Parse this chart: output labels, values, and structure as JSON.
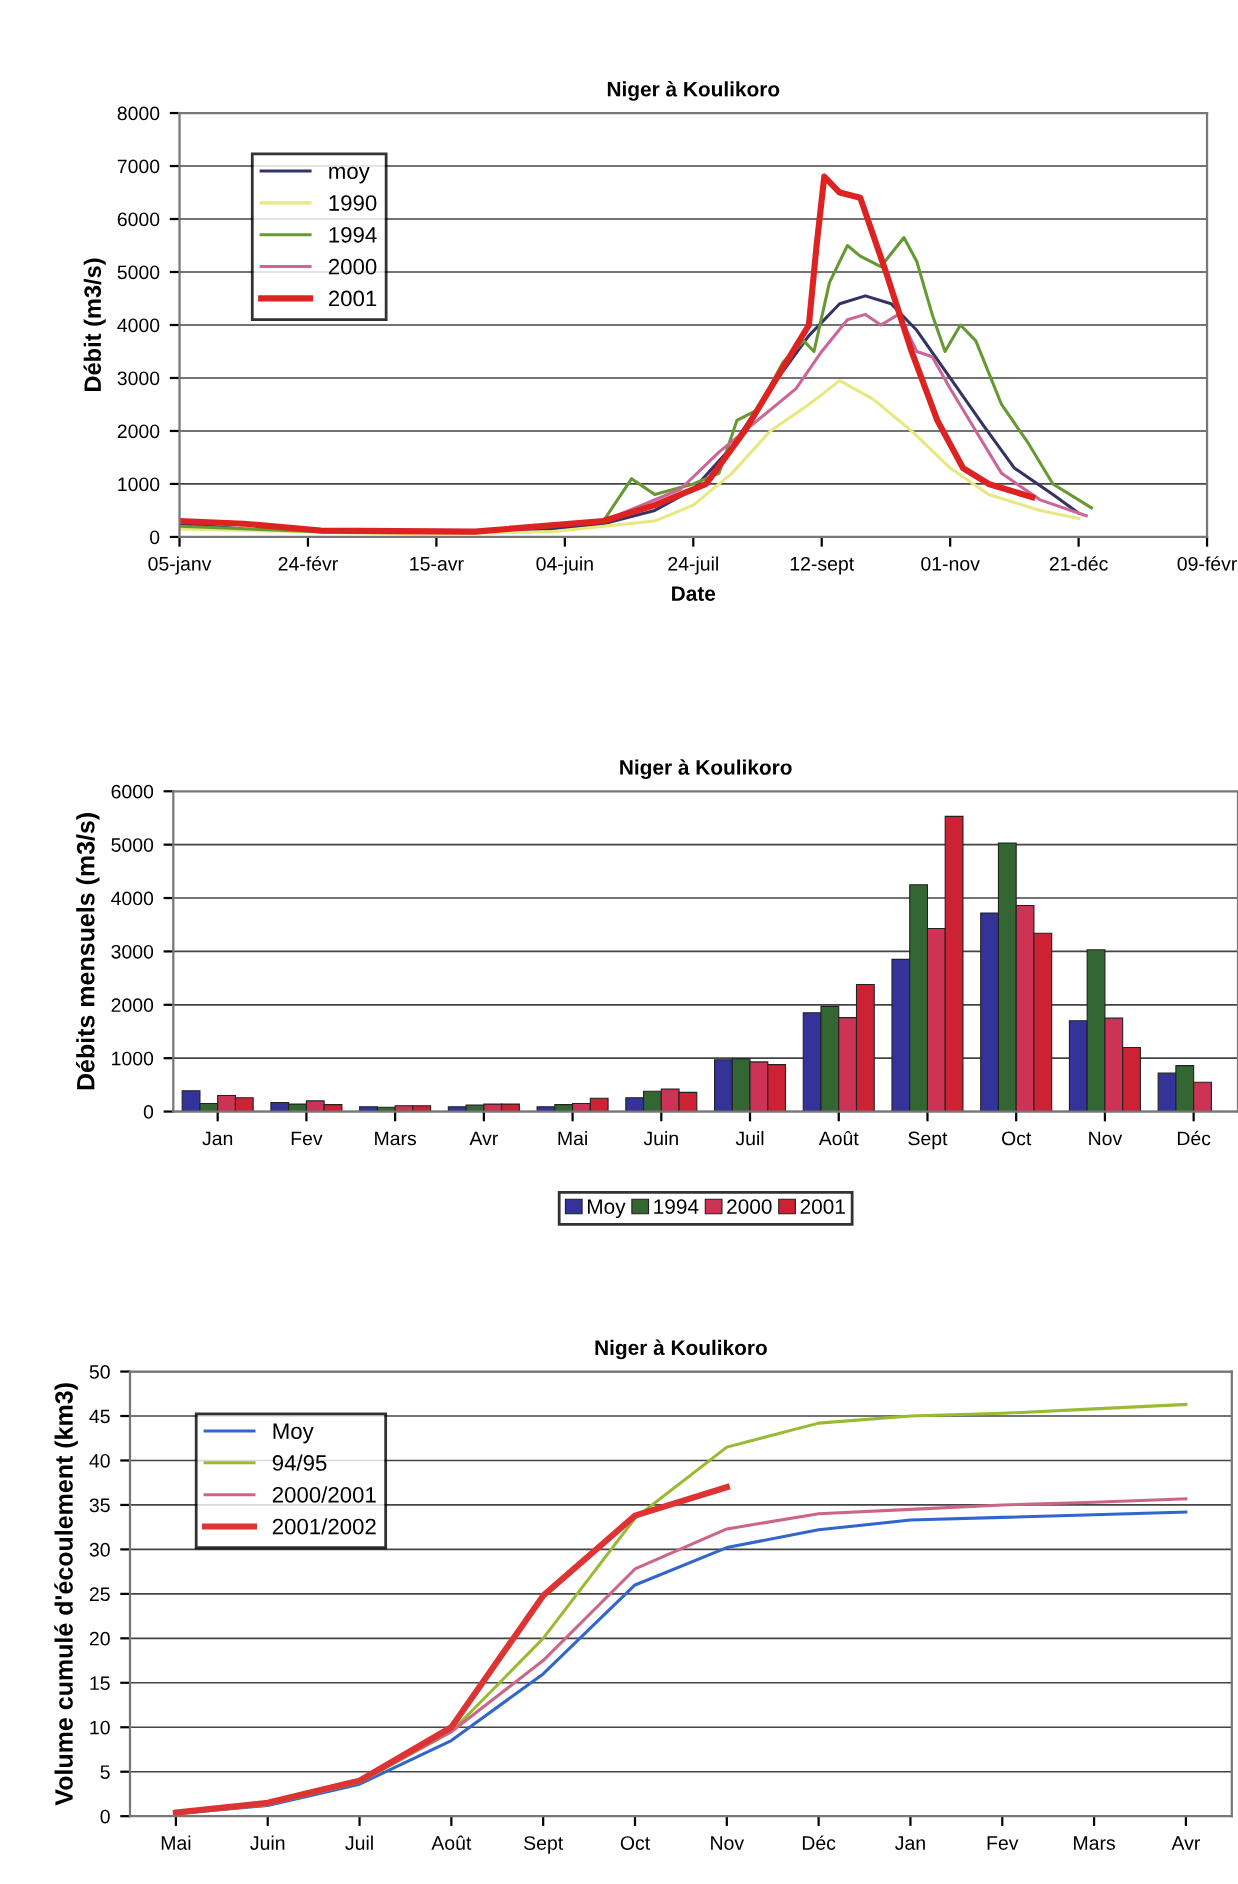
{
  "chart_data": [
    {
      "type": "line",
      "title": "Niger à Koulikoro",
      "xlabel": "Date",
      "ylabel": "Débit (m3/s)",
      "xlim": [
        "2001-01-05",
        "2002-02-09"
      ],
      "xticks": [
        {
          "value": "2001-01-05",
          "label": "05-janv"
        },
        {
          "value": "2001-02-24",
          "label": "24-févr"
        },
        {
          "value": "2001-04-15",
          "label": "15-avr"
        },
        {
          "value": "2001-06-04",
          "label": "04-juin"
        },
        {
          "value": "2001-07-24",
          "label": "24-juil"
        },
        {
          "value": "2001-09-12",
          "label": "12-sept"
        },
        {
          "value": "2001-11-01",
          "label": "01-nov"
        },
        {
          "value": "2001-12-21",
          "label": "21-déc"
        },
        {
          "value": "2002-02-09",
          "label": "09-févr"
        }
      ],
      "ylim": [
        0,
        8000
      ],
      "yticks": [
        0,
        1000,
        2000,
        3000,
        4000,
        5000,
        6000,
        7000,
        8000
      ],
      "grid": "y",
      "legend": "top left",
      "marker": "none",
      "line_style": "solid",
      "series": [
        {
          "name": "moy",
          "color": "#333366",
          "x": [
            "2001-01-05",
            "2001-01-30",
            "2001-03-01",
            "2001-04-10",
            "2001-05-30",
            "2001-06-19",
            "2001-07-09",
            "2001-07-24",
            "2001-08-08",
            "2001-08-23",
            "2001-09-07",
            "2001-09-19",
            "2001-09-29",
            "2001-10-09",
            "2001-10-19",
            "2001-11-01",
            "2001-11-14",
            "2001-11-26",
            "2001-12-11",
            "2001-12-21"
          ],
          "values": [
            250,
            150,
            100,
            80,
            150,
            250,
            500,
            900,
            1700,
            2800,
            3800,
            4400,
            4550,
            4400,
            3900,
            3000,
            2100,
            1300,
            800,
            450
          ]
        },
        {
          "name": "1990",
          "color": "#e8e880",
          "x": [
            "2001-01-05",
            "2001-04-10",
            "2001-05-30",
            "2001-07-09",
            "2001-07-24",
            "2001-08-08",
            "2001-08-23",
            "2001-09-07",
            "2001-09-19",
            "2001-10-02",
            "2001-10-17",
            "2001-11-01",
            "2001-11-16",
            "2001-12-06",
            "2001-12-21"
          ],
          "values": [
            150,
            50,
            100,
            300,
            600,
            1200,
            2000,
            2500,
            2950,
            2600,
            2000,
            1300,
            800,
            500,
            350
          ]
        },
        {
          "name": "1994",
          "color": "#669933",
          "x": [
            "2001-01-05",
            "2001-03-01",
            "2001-04-30",
            "2001-06-19",
            "2001-06-30",
            "2001-07-09",
            "2001-07-24",
            "2001-08-03",
            "2001-08-10",
            "2001-08-18",
            "2001-08-28",
            "2001-09-05",
            "2001-09-09",
            "2001-09-15",
            "2001-09-22",
            "2001-09-27",
            "2001-10-05",
            "2001-10-14",
            "2001-10-19",
            "2001-10-25",
            "2001-10-30",
            "2001-11-05",
            "2001-11-11",
            "2001-11-21",
            "2001-12-01",
            "2001-12-11",
            "2001-12-26"
          ],
          "values": [
            200,
            100,
            80,
            300,
            1100,
            800,
            1000,
            1200,
            2200,
            2400,
            3300,
            3700,
            3500,
            4800,
            5500,
            5300,
            5100,
            5650,
            5200,
            4200,
            3500,
            4000,
            3700,
            2500,
            1800,
            1000,
            550
          ]
        },
        {
          "name": "2000",
          "color": "#cc6699",
          "x": [
            "2001-01-05",
            "2001-01-30",
            "2001-03-01",
            "2001-04-30",
            "2001-06-19",
            "2001-07-19",
            "2001-08-03",
            "2001-08-18",
            "2001-09-02",
            "2001-09-12",
            "2001-09-22",
            "2001-09-29",
            "2001-10-05",
            "2001-10-12",
            "2001-10-19",
            "2001-10-25",
            "2001-11-01",
            "2001-11-11",
            "2001-11-21",
            "2001-12-06",
            "2001-12-24"
          ],
          "values": [
            300,
            250,
            120,
            100,
            300,
            900,
            1600,
            2200,
            2800,
            3500,
            4100,
            4200,
            4000,
            4200,
            3500,
            3400,
            2800,
            2000,
            1200,
            700,
            400
          ]
        },
        {
          "name": "2001",
          "color": "#dd2222",
          "x": [
            "2001-01-05",
            "2001-01-30",
            "2001-03-01",
            "2001-04-30",
            "2001-06-19",
            "2001-07-09",
            "2001-07-29",
            "2001-08-13",
            "2001-08-28",
            "2001-09-07",
            "2001-09-10",
            "2001-09-13",
            "2001-09-19",
            "2001-09-27",
            "2001-10-07",
            "2001-10-17",
            "2001-10-27",
            "2001-11-06",
            "2001-11-16",
            "2001-12-03"
          ],
          "values": [
            300,
            250,
            120,
            100,
            300,
            600,
            1000,
            2000,
            3200,
            4000,
            5500,
            6800,
            6500,
            6400,
            5000,
            3500,
            2200,
            1300,
            1000,
            750
          ]
        }
      ]
    },
    {
      "type": "bar",
      "title": "Niger à Koulikoro",
      "ylabel": "Débits mensuels (m3/s)",
      "categories": [
        "Jan",
        "Fev",
        "Mars",
        "Avr",
        "Mai",
        "Juin",
        "Juil",
        "Août",
        "Sept",
        "Oct",
        "Nov",
        "Déc"
      ],
      "ylim": [
        0,
        6000
      ],
      "yticks": [
        0,
        1000,
        2000,
        3000,
        4000,
        5000,
        6000
      ],
      "grid": "y",
      "legend": "bottom",
      "series": [
        {
          "name": "Moy",
          "color": "#333399",
          "values": [
            390,
            170,
            90,
            90,
            90,
            260,
            970,
            1850,
            2850,
            3720,
            1700,
            720
          ]
        },
        {
          "name": "1994",
          "color": "#336633",
          "values": [
            150,
            140,
            80,
            120,
            130,
            380,
            990,
            1970,
            4250,
            5030,
            3030,
            860
          ]
        },
        {
          "name": "2000",
          "color": "#cc3355",
          "values": [
            300,
            200,
            110,
            140,
            150,
            420,
            930,
            1760,
            3430,
            3860,
            1750,
            550
          ]
        },
        {
          "name": "2001",
          "color": "#cc2233",
          "values": [
            260,
            130,
            110,
            140,
            250,
            360,
            880,
            2380,
            5530,
            3340,
            1200,
            null
          ]
        }
      ]
    },
    {
      "type": "line",
      "title": "Niger à Koulikoro",
      "ylabel": "Volume cumulé d'écoulement (km3)",
      "categories": [
        "Mai",
        "Juin",
        "Juil",
        "Août",
        "Sept",
        "Oct",
        "Nov",
        "Déc",
        "Jan",
        "Fev",
        "Mars",
        "Avr"
      ],
      "ylim": [
        0,
        50
      ],
      "yticks": [
        0,
        5,
        10,
        15,
        20,
        25,
        30,
        35,
        40,
        45,
        50
      ],
      "grid": "y",
      "legend": "top left",
      "marker": "none",
      "line_style": "solid",
      "series": [
        {
          "name": "Moy",
          "color": "#3366cc",
          "values": [
            0.3,
            1.2,
            3.6,
            8.5,
            16,
            26,
            30.2,
            32.2,
            33.3,
            33.6,
            33.9,
            34.2
          ]
        },
        {
          "name": "94/95",
          "color": "#99bb33",
          "values": [
            0.3,
            1.3,
            3.8,
            9.5,
            20,
            33.5,
            41.5,
            44.2,
            45.0,
            45.3,
            45.8,
            46.3
          ]
        },
        {
          "name": "2000/2001",
          "color": "#cc6688",
          "values": [
            0.4,
            1.4,
            3.9,
            9.5,
            17.5,
            27.8,
            32.3,
            34,
            34.5,
            35,
            35.3,
            35.7
          ]
        },
        {
          "name": "2001/2002",
          "color": "#dd3333",
          "values": [
            0.4,
            1.5,
            4.0,
            10.0,
            24.8,
            33.8,
            37.0,
            null,
            null,
            null,
            null,
            null
          ]
        }
      ]
    }
  ]
}
